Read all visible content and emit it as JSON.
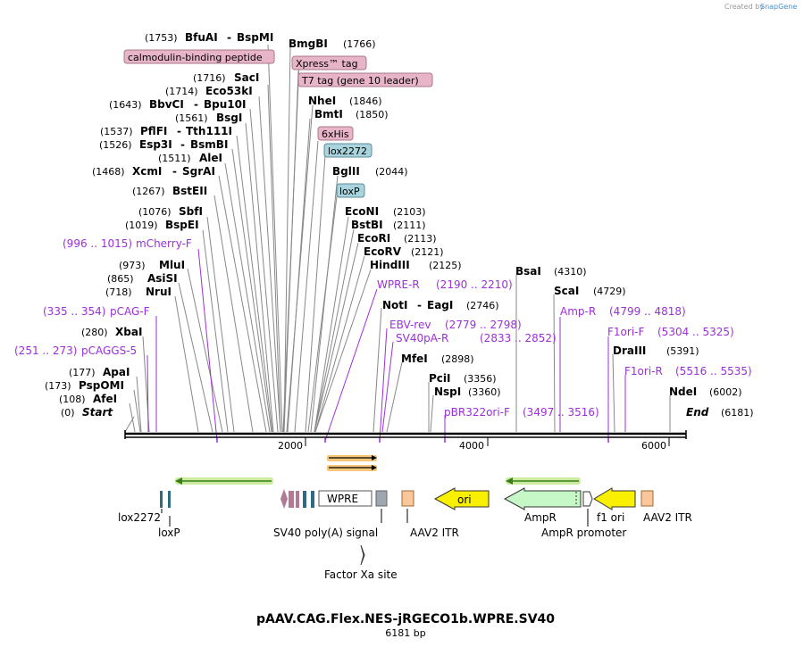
{
  "title": "pAAV.CAG.Flex.NES-jRGECO1b.WPRE.SV40",
  "subtitle": "6181 bp",
  "credit": "Created by",
  "brand": "SnapGene",
  "colors": {
    "primer": "#9b30d9",
    "axis": "#000000",
    "pinkBox": "#e8b4c8",
    "blueBox": "#a9d4de",
    "green": "#3a7d1d"
  },
  "ruler": {
    "ticks": [
      "2000",
      "4000",
      "6000"
    ]
  },
  "sites": [
    {
      "name": "BfuAI",
      "pair": "BspMI",
      "pos": "(1753)"
    },
    {
      "name": "BmgBI",
      "pos": "(1766)"
    },
    {
      "box": "calmodulin-binding peptide"
    },
    {
      "box": "Xpress™ tag"
    },
    {
      "name": "SacI",
      "pos": "(1716)"
    },
    {
      "box": "T7 tag (gene 10 leader)"
    },
    {
      "name": "Eco53kI",
      "pos": "(1714)"
    },
    {
      "name": "BbvCI",
      "pair": "Bpu10I",
      "pos": "(1643)"
    },
    {
      "name": "NheI",
      "pos": "(1846)"
    },
    {
      "name": "BsgI",
      "pos": "(1561)"
    },
    {
      "name": "BmtI",
      "pos": "(1850)"
    },
    {
      "name": "PflFI",
      "pair": "Tth111I",
      "pos": "(1537)"
    },
    {
      "box": "6xHis"
    },
    {
      "name": "Esp3I",
      "pair": "BsmBI",
      "pos": "(1526)"
    },
    {
      "box": "lox2272"
    },
    {
      "name": "AleI",
      "pos": "(1511)"
    },
    {
      "name": "XcmI",
      "pair": "SgrAI",
      "pos": "(1468)"
    },
    {
      "name": "BglII",
      "pos": "(2044)"
    },
    {
      "name": "BstEII",
      "pos": "(1267)"
    },
    {
      "box": "loxP"
    },
    {
      "name": "SbfI",
      "pos": "(1076)"
    },
    {
      "name": "EcoNI",
      "pos": "(2103)"
    },
    {
      "name": "BspEI",
      "pos": "(1019)"
    },
    {
      "name": "BstBI",
      "pos": "(2111)"
    },
    {
      "name": "EcoRI",
      "pos": "(2113)"
    },
    {
      "name": "EcoRV",
      "pos": "(2121)"
    },
    {
      "name": "MluI",
      "pos": "(973)"
    },
    {
      "name": "HindIII",
      "pos": "(2125)"
    },
    {
      "name": "AsiSI",
      "pos": "(865)"
    },
    {
      "name": "NruI",
      "pos": "(718)"
    },
    {
      "name": "NotI",
      "pair": "EagI",
      "pos": "(2746)"
    },
    {
      "name": "XbaI",
      "pos": "(280)"
    },
    {
      "name": "MfeI",
      "pos": "(2898)"
    },
    {
      "name": "ApaI",
      "pos": "(177)"
    },
    {
      "name": "PspOMI",
      "pos": "(173)"
    },
    {
      "name": "PciI",
      "pos": "(3356)"
    },
    {
      "name": "AfeI",
      "pos": "(108)"
    },
    {
      "name": "NspI",
      "pos": "(3360)"
    },
    {
      "name": "BsaI",
      "pos": "(4310)"
    },
    {
      "name": "ScaI",
      "pos": "(4729)"
    },
    {
      "name": "DraIII",
      "pos": "(5391)"
    },
    {
      "name": "NdeI",
      "pos": "(6002)"
    }
  ],
  "ends": {
    "start": "Start",
    "startPos": "(0)",
    "end": "End",
    "endPos": "(6181)"
  },
  "primers": [
    {
      "name": "mCherry-F",
      "range": "(996 .. 1015)"
    },
    {
      "name": "pCAG-F",
      "range": "(335 .. 354)"
    },
    {
      "name": "pCAGGS-5",
      "range": "(251 .. 273)"
    },
    {
      "name": "WPRE-R",
      "range": "(2190 .. 2210)"
    },
    {
      "name": "EBV-rev",
      "range": "(2779 .. 2798)"
    },
    {
      "name": "SV40pA-R",
      "range": "(2833 .. 2852)"
    },
    {
      "name": "pBR322ori-F",
      "range": "(3497 .. 3516)"
    },
    {
      "name": "Amp-R",
      "range": "(4799 .. 4818)"
    },
    {
      "name": "F1ori-F",
      "range": "(5304 .. 5325)"
    },
    {
      "name": "F1ori-R",
      "range": "(5516 .. 5535)"
    }
  ],
  "features": {
    "wpre": "WPRE",
    "ori": "ori",
    "lox2272": "lox2272",
    "loxP": "loxP",
    "sv40": "SV40 poly(A) signal",
    "itr1": "AAV2 ITR",
    "ampr": "AmpR",
    "f1ori": "f1 ori",
    "itr2": "AAV2 ITR",
    "amprPromoter": "AmpR promoter",
    "factorXa": "Factor Xa site"
  }
}
